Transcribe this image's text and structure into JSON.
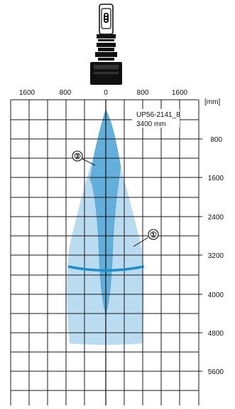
{
  "x_axis": {
    "ticks": [
      "1600",
      "800",
      "0",
      "800",
      "1600"
    ],
    "unit": "[mm]"
  },
  "y_axis": {
    "ticks": [
      "800",
      "1600",
      "2400",
      "3200",
      "4000",
      "4800",
      "5600"
    ]
  },
  "sensor": {
    "model": "UP56-2141_8",
    "range": "3400 mm"
  },
  "markers": {
    "one": "①",
    "two": "②"
  },
  "colors": {
    "wide_beam": "#b9dcf1",
    "narrow_beam": "#63afdc",
    "range_line": "#1a8fcb",
    "grid": "#1a1a1a",
    "sensor_body": "#111111"
  }
}
